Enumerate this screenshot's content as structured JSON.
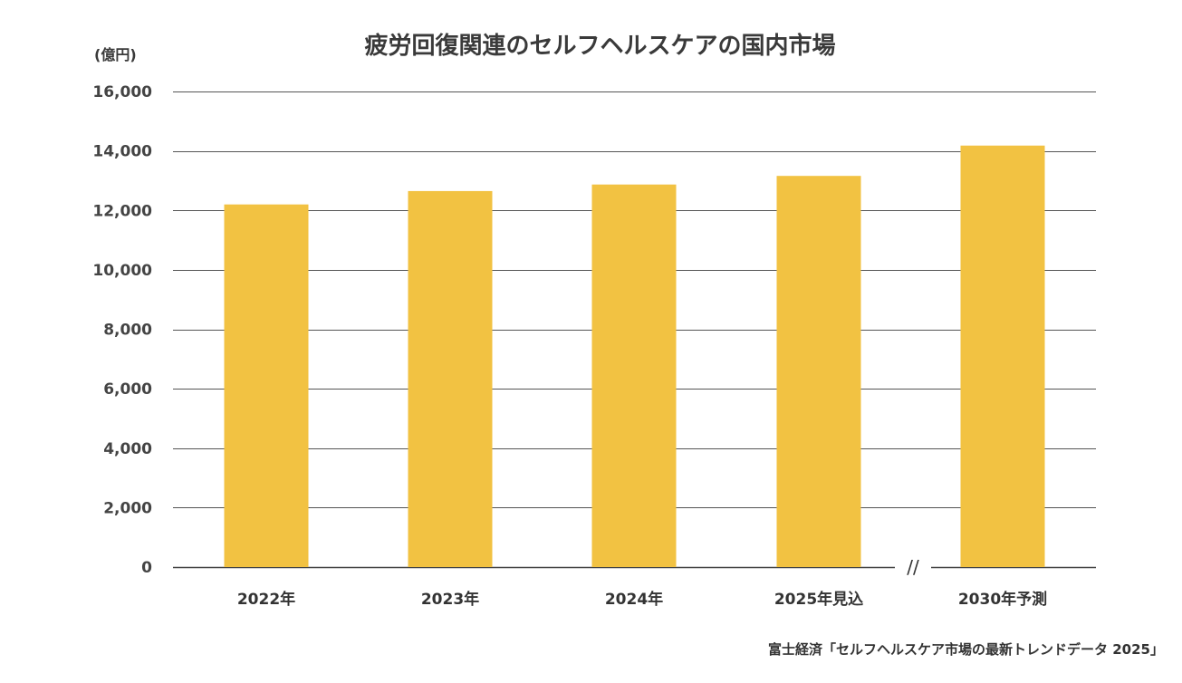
{
  "chart_data": {
    "type": "bar",
    "title": "疲労回復関連のセルフヘルスケアの国内市場",
    "ylabel": "(億円)",
    "xlabel": "",
    "categories": [
      "2022年",
      "2023年",
      "2024年",
      "2025年見込",
      "2030年予測"
    ],
    "values": [
      12200,
      12650,
      12870,
      13160,
      14180
    ],
    "ylim": [
      0,
      16000
    ],
    "yticks": [
      0,
      2000,
      4000,
      6000,
      8000,
      10000,
      12000,
      14000,
      16000
    ],
    "ytick_labels": [
      "0",
      "2,000",
      "4,000",
      "6,000",
      "8,000",
      "10,000",
      "12,000",
      "14,000",
      "16,000"
    ],
    "grid": true,
    "bar_color": "#F2C242",
    "grid_color": "#555555",
    "axis_break_label": "//",
    "source": "富士経済「セルフヘルスケア市場の最新トレンドデータ 2025」"
  }
}
